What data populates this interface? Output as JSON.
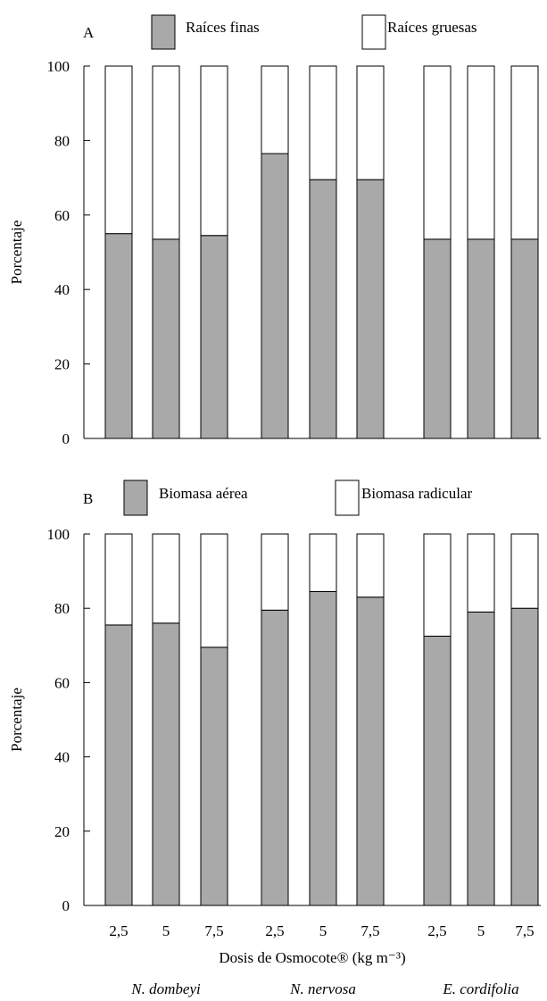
{
  "chart_data": [
    {
      "type": "bar",
      "stacked": true,
      "panel_label": "A",
      "ylabel": "Porcentaje",
      "ylim": [
        0,
        100
      ],
      "yticks": [
        0,
        20,
        40,
        60,
        80,
        100
      ],
      "legend_position": "top",
      "categories": [
        "2,5",
        "5",
        "7,5",
        "2,5",
        "5",
        "7,5",
        "2,5",
        "5",
        "7,5"
      ],
      "series": [
        {
          "name": "Raíces finas",
          "color": "#a9a9a9",
          "values": [
            55,
            53.5,
            54.5,
            76.5,
            69.5,
            69.5,
            53.5,
            53.5,
            53.5
          ]
        },
        {
          "name": "Raíces gruesas",
          "color": "#ffffff",
          "values": [
            45,
            46.5,
            45.5,
            23.5,
            30.5,
            30.5,
            46.5,
            46.5,
            46.5
          ]
        }
      ]
    },
    {
      "type": "bar",
      "stacked": true,
      "panel_label": "B",
      "ylabel": "Porcentaje",
      "xlabel": "Dosis de Osmocote® (kg m⁻³)",
      "ylim": [
        0,
        100
      ],
      "yticks": [
        0,
        20,
        40,
        60,
        80,
        100
      ],
      "legend_position": "top",
      "categories": [
        "2,5",
        "5",
        "7,5",
        "2,5",
        "5",
        "7,5",
        "2,5",
        "5",
        "7,5"
      ],
      "groups": [
        "N. dombeyi",
        "N. nervosa",
        "E. cordifolia"
      ],
      "series": [
        {
          "name": "Biomasa aérea",
          "color": "#a9a9a9",
          "values": [
            75.5,
            76,
            69.5,
            79.5,
            84.5,
            83,
            72.5,
            79,
            80
          ]
        },
        {
          "name": "Biomasa radicular",
          "color": "#ffffff",
          "values": [
            24.5,
            24,
            30.5,
            20.5,
            15.5,
            17,
            27.5,
            21,
            20
          ]
        }
      ]
    }
  ]
}
